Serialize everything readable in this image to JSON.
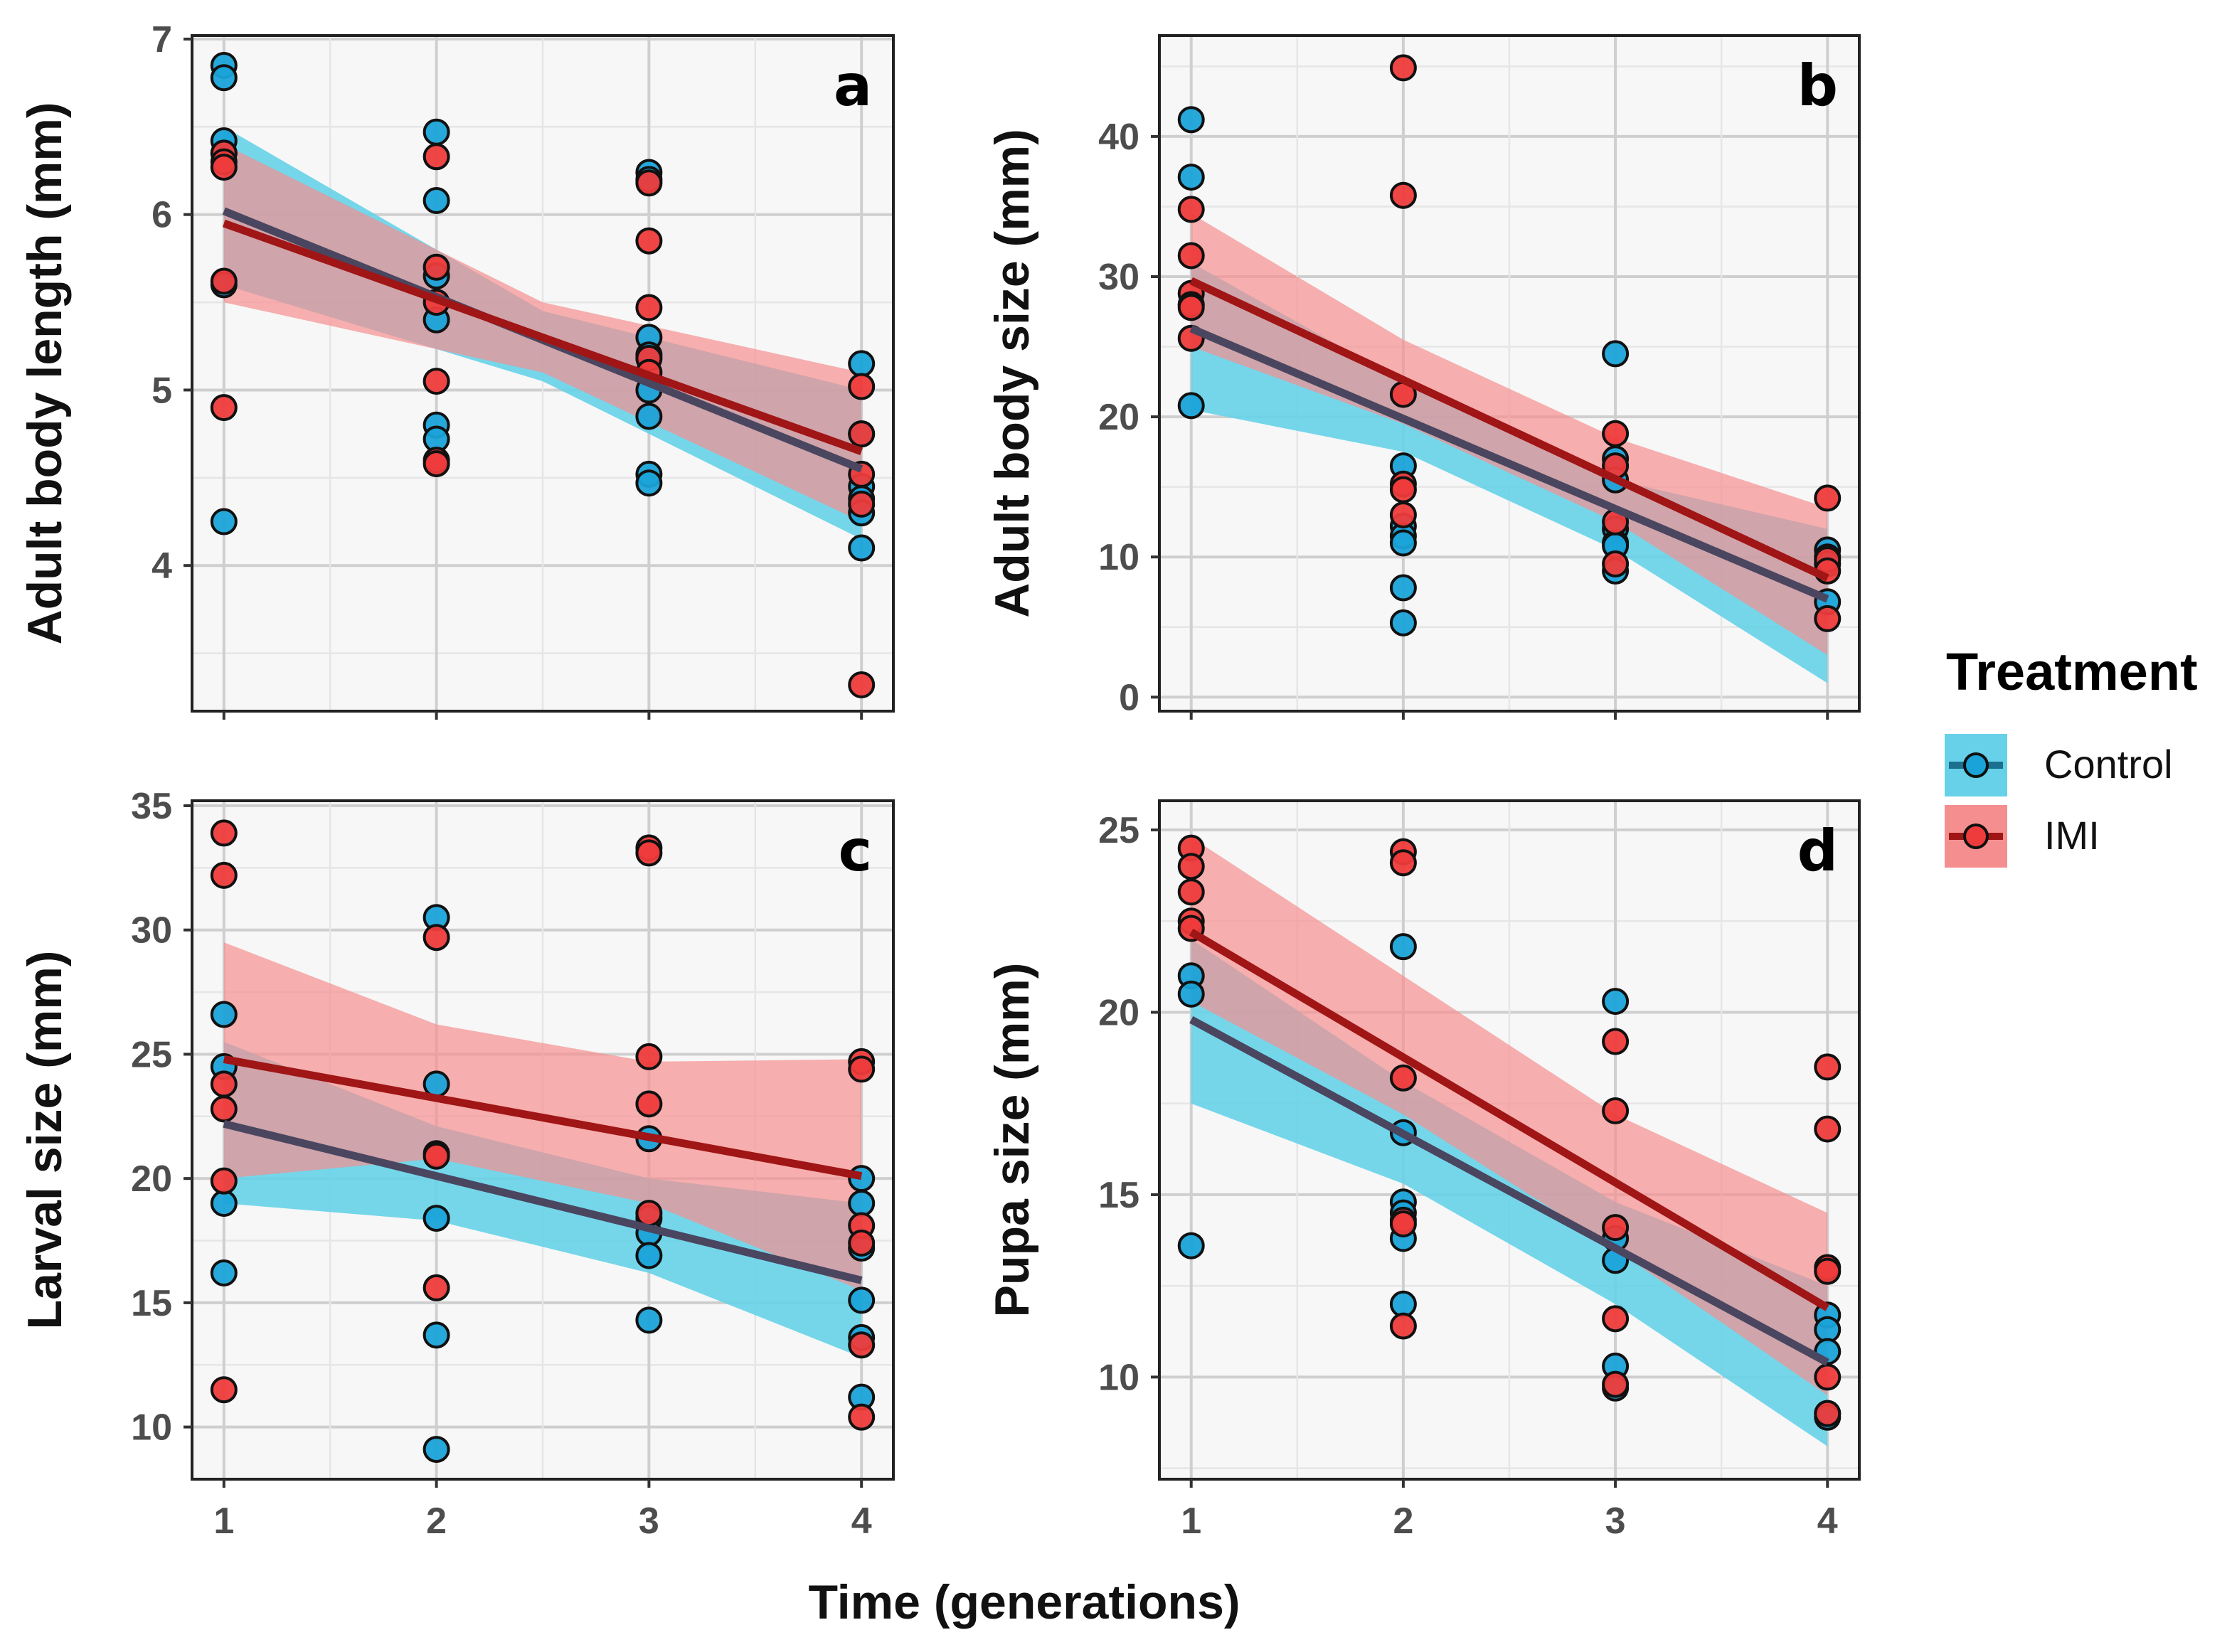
{
  "chart_data": [
    {
      "type": "scatter",
      "panel_label": "a",
      "xlabel": "Time (generations)",
      "ylabel": "Adult body length (mm)",
      "x_ticks": [
        "1",
        "2",
        "3",
        "4"
      ],
      "y_ticks": [
        4,
        5,
        6,
        7
      ],
      "xlim": [
        0.85,
        4.15
      ],
      "ylim": [
        3.17,
        7.02
      ],
      "grid": true,
      "series": [
        {
          "name": "Control",
          "points": [
            [
              1,
              6.85
            ],
            [
              1,
              6.78
            ],
            [
              1,
              6.42
            ],
            [
              1,
              6.35
            ],
            [
              1,
              5.6
            ],
            [
              1,
              4.25
            ],
            [
              2,
              6.47
            ],
            [
              2,
              6.08
            ],
            [
              2,
              5.65
            ],
            [
              2,
              5.4
            ],
            [
              2,
              4.8
            ],
            [
              2,
              4.72
            ],
            [
              3,
              6.24
            ],
            [
              3,
              6.2
            ],
            [
              3,
              5.3
            ],
            [
              3,
              5.2
            ],
            [
              3,
              5.0
            ],
            [
              3,
              4.85
            ],
            [
              3,
              4.52
            ],
            [
              3,
              4.47
            ],
            [
              4,
              5.15
            ],
            [
              4,
              4.75
            ],
            [
              4,
              4.45
            ],
            [
              4,
              4.38
            ],
            [
              4,
              4.3
            ],
            [
              4,
              4.1
            ]
          ],
          "fit": [
            [
              1,
              6.02
            ],
            [
              4,
              4.55
            ]
          ],
          "ci_lower": [
            [
              1,
              5.6
            ],
            [
              2.5,
              5.05
            ],
            [
              4,
              4.15
            ]
          ],
          "ci_upper": [
            [
              1,
              6.5
            ],
            [
              2.5,
              5.45
            ],
            [
              4,
              5.0
            ]
          ]
        },
        {
          "name": "IMI",
          "points": [
            [
              1,
              6.35
            ],
            [
              1,
              6.3
            ],
            [
              1,
              6.27
            ],
            [
              1,
              5.62
            ],
            [
              1,
              4.9
            ],
            [
              2,
              6.33
            ],
            [
              2,
              5.7
            ],
            [
              2,
              5.5
            ],
            [
              2,
              5.05
            ],
            [
              2,
              4.6
            ],
            [
              2,
              4.58
            ],
            [
              3,
              6.18
            ],
            [
              3,
              5.85
            ],
            [
              3,
              5.47
            ],
            [
              3,
              5.18
            ],
            [
              3,
              5.1
            ],
            [
              4,
              5.02
            ],
            [
              4,
              4.75
            ],
            [
              4,
              4.52
            ],
            [
              4,
              4.35
            ],
            [
              4,
              3.32
            ]
          ],
          "fit": [
            [
              1,
              5.95
            ],
            [
              4,
              4.65
            ]
          ],
          "ci_lower": [
            [
              1,
              5.5
            ],
            [
              2.5,
              5.1
            ],
            [
              4,
              4.25
            ]
          ],
          "ci_upper": [
            [
              1,
              6.4
            ],
            [
              2.5,
              5.5
            ],
            [
              4,
              5.1
            ]
          ]
        }
      ]
    },
    {
      "type": "scatter",
      "panel_label": "b",
      "xlabel": "Time (generations)",
      "ylabel": "Adult body size (mm)",
      "x_ticks": [
        "1",
        "2",
        "3",
        "4"
      ],
      "y_ticks": [
        0,
        10,
        20,
        30,
        40
      ],
      "xlim": [
        0.85,
        4.15
      ],
      "ylim": [
        -1.0,
        47.2
      ],
      "grid": true,
      "series": [
        {
          "name": "Control",
          "points": [
            [
              1,
              41.2
            ],
            [
              1,
              37.1
            ],
            [
              1,
              28
            ],
            [
              1,
              20.8
            ],
            [
              2,
              16.5
            ],
            [
              2,
              12.2
            ],
            [
              2,
              11.5
            ],
            [
              2,
              11
            ],
            [
              2,
              7.8
            ],
            [
              2,
              5.3
            ],
            [
              3,
              24.5
            ],
            [
              3,
              17
            ],
            [
              3,
              15.5
            ],
            [
              3,
              12
            ],
            [
              3,
              11
            ],
            [
              3,
              10.8
            ],
            [
              3,
              9
            ],
            [
              4,
              10.5
            ],
            [
              4,
              10
            ],
            [
              4,
              9.5
            ],
            [
              4,
              6.8
            ]
          ],
          "fit": [
            [
              1,
              26.3
            ],
            [
              4,
              7.0
            ]
          ],
          "ci_lower": [
            [
              1,
              20.5
            ],
            [
              2,
              17.5
            ],
            [
              3,
              10.5
            ],
            [
              4,
              1.0
            ]
          ],
          "ci_upper": [
            [
              1,
              31
            ],
            [
              2,
              22.5
            ],
            [
              3,
              15.5
            ],
            [
              4,
              12
            ]
          ]
        },
        {
          "name": "IMI",
          "points": [
            [
              1,
              34.8
            ],
            [
              1,
              31.5
            ],
            [
              1,
              28.8
            ],
            [
              1,
              28
            ],
            [
              1,
              27.8
            ],
            [
              1,
              25.6
            ],
            [
              2,
              44.9
            ],
            [
              2,
              35.8
            ],
            [
              2,
              21.6
            ],
            [
              2,
              15.2
            ],
            [
              2,
              14.8
            ],
            [
              2,
              13
            ],
            [
              3,
              18.8
            ],
            [
              3,
              16.5
            ],
            [
              3,
              12.5
            ],
            [
              3,
              9.5
            ],
            [
              4,
              14.2
            ],
            [
              4,
              9.8
            ],
            [
              4,
              9
            ],
            [
              4,
              5.6
            ]
          ],
          "fit": [
            [
              1,
              29.7
            ],
            [
              4,
              8.5
            ]
          ],
          "ci_lower": [
            [
              1,
              25
            ],
            [
              2,
              19.5
            ],
            [
              3,
              12.5
            ],
            [
              4,
              3
            ]
          ],
          "ci_upper": [
            [
              1,
              34.5
            ],
            [
              2,
              25.5
            ],
            [
              3,
              18.5
            ],
            [
              4,
              13.5
            ]
          ]
        }
      ]
    },
    {
      "type": "scatter",
      "panel_label": "c",
      "xlabel": "Time (generations)",
      "ylabel": "Larval size (mm)",
      "x_ticks": [
        "1",
        "2",
        "3",
        "4"
      ],
      "y_ticks": [
        10,
        15,
        20,
        25,
        30,
        35
      ],
      "xlim": [
        0.85,
        4.15
      ],
      "ylim": [
        7.9,
        35.2
      ],
      "grid": true,
      "series": [
        {
          "name": "Control",
          "points": [
            [
              1,
              26.6
            ],
            [
              1,
              24.5
            ],
            [
              1,
              19
            ],
            [
              1,
              16.2
            ],
            [
              2,
              30.5
            ],
            [
              2,
              23.8
            ],
            [
              2,
              18.4
            ],
            [
              2,
              13.7
            ],
            [
              2,
              9.1
            ],
            [
              3,
              21.6
            ],
            [
              3,
              18.4
            ],
            [
              3,
              17.8
            ],
            [
              3,
              16.9
            ],
            [
              3,
              14.3
            ],
            [
              4,
              20
            ],
            [
              4,
              19
            ],
            [
              4,
              17.2
            ],
            [
              4,
              15.1
            ],
            [
              4,
              13.6
            ],
            [
              4,
              11.2
            ]
          ],
          "fit": [
            [
              1,
              22.2
            ],
            [
              4,
              15.9
            ]
          ],
          "ci_lower": [
            [
              1,
              19
            ],
            [
              2,
              18.3
            ],
            [
              3,
              16.2
            ],
            [
              4,
              12.8
            ]
          ],
          "ci_upper": [
            [
              1,
              25.5
            ],
            [
              2,
              22.1
            ],
            [
              3,
              20.0
            ],
            [
              4,
              19
            ]
          ]
        },
        {
          "name": "IMI",
          "points": [
            [
              1,
              33.9
            ],
            [
              1,
              32.2
            ],
            [
              1,
              23.8
            ],
            [
              1,
              22.8
            ],
            [
              1,
              19.9
            ],
            [
              1,
              11.5
            ],
            [
              2,
              29.7
            ],
            [
              2,
              21.0
            ],
            [
              2,
              20.9
            ],
            [
              2,
              15.6
            ],
            [
              3,
              33.3
            ],
            [
              3,
              33.1
            ],
            [
              3,
              24.9
            ],
            [
              3,
              23.0
            ],
            [
              3,
              18.6
            ],
            [
              4,
              24.7
            ],
            [
              4,
              24.4
            ],
            [
              4,
              18.1
            ],
            [
              4,
              17.4
            ],
            [
              4,
              13.3
            ],
            [
              4,
              10.4
            ]
          ],
          "fit": [
            [
              1,
              24.8
            ],
            [
              4,
              20.1
            ]
          ],
          "ci_lower": [
            [
              1,
              20
            ],
            [
              2,
              20.8
            ],
            [
              3,
              19.0
            ],
            [
              4,
              15.5
            ]
          ],
          "ci_upper": [
            [
              1,
              29.5
            ],
            [
              2,
              26.2
            ],
            [
              3,
              24.7
            ],
            [
              4,
              24.8
            ]
          ]
        }
      ]
    },
    {
      "type": "scatter",
      "panel_label": "d",
      "xlabel": "Time (generations)",
      "ylabel": "Pupa size (mm)",
      "x_ticks": [
        "1",
        "2",
        "3",
        "4"
      ],
      "y_ticks": [
        10,
        15,
        20,
        25
      ],
      "xlim": [
        0.85,
        4.15
      ],
      "ylim": [
        7.2,
        25.8
      ],
      "grid": true,
      "series": [
        {
          "name": "Control",
          "points": [
            [
              1,
              21.0
            ],
            [
              1,
              20.5
            ],
            [
              1,
              13.6
            ],
            [
              2,
              21.8
            ],
            [
              2,
              16.7
            ],
            [
              2,
              14.8
            ],
            [
              2,
              14.5
            ],
            [
              2,
              13.8
            ],
            [
              2,
              12
            ],
            [
              3,
              20.3
            ],
            [
              3,
              13.8
            ],
            [
              3,
              13.2
            ],
            [
              3,
              10.3
            ],
            [
              3,
              9.7
            ],
            [
              4,
              11.7
            ],
            [
              4,
              11.3
            ],
            [
              4,
              10.7
            ],
            [
              4,
              9
            ],
            [
              4,
              8.9
            ]
          ],
          "fit": [
            [
              1,
              19.8
            ],
            [
              4,
              10.4
            ]
          ],
          "ci_lower": [
            [
              1,
              17.5
            ],
            [
              2,
              15.3
            ],
            [
              3,
              12.0
            ],
            [
              4,
              8.1
            ]
          ],
          "ci_upper": [
            [
              1,
              22
            ],
            [
              2,
              18.1
            ],
            [
              3,
              14.8
            ],
            [
              4,
              12.5
            ]
          ]
        },
        {
          "name": "IMI",
          "points": [
            [
              1,
              24.5
            ],
            [
              1,
              24.0
            ],
            [
              1,
              23.3
            ],
            [
              1,
              22.5
            ],
            [
              1,
              22.3
            ],
            [
              2,
              24.4
            ],
            [
              2,
              24.1
            ],
            [
              2,
              18.2
            ],
            [
              2,
              14.3
            ],
            [
              2,
              14.2
            ],
            [
              2,
              11.4
            ],
            [
              3,
              19.2
            ],
            [
              3,
              17.3
            ],
            [
              3,
              14.1
            ],
            [
              3,
              11.6
            ],
            [
              3,
              9.8
            ],
            [
              4,
              18.5
            ],
            [
              4,
              16.8
            ],
            [
              4,
              13.0
            ],
            [
              4,
              12.9
            ],
            [
              4,
              10.0
            ],
            [
              4,
              9.0
            ]
          ],
          "fit": [
            [
              1,
              22.2
            ],
            [
              4,
              11.9
            ]
          ],
          "ci_lower": [
            [
              1,
              20.3
            ],
            [
              2,
              17.2
            ],
            [
              3,
              13.5
            ],
            [
              4,
              9.5
            ]
          ],
          "ci_upper": [
            [
              1,
              24.8
            ],
            [
              2,
              21.0
            ],
            [
              3,
              17.2
            ],
            [
              4,
              14.5
            ]
          ]
        }
      ]
    }
  ],
  "shared": {
    "xlabel": "Time (generations)"
  },
  "legend": {
    "title": "Treatment",
    "placement": "right",
    "entries": [
      {
        "name": "Control",
        "point_color": "#1aa3d9",
        "line_color": "#1b6f8f",
        "band_color": "#66d1e8"
      },
      {
        "name": "IMI",
        "point_color": "#ee3b3b",
        "line_color": "#a01515",
        "band_color": "#f58f8f"
      }
    ]
  },
  "colors": {
    "panel_bg": "#f7f7f7",
    "grid_major": "#cfcfcf",
    "grid_minor": "#e6e6e6",
    "overlap_line": "#4a4660"
  }
}
